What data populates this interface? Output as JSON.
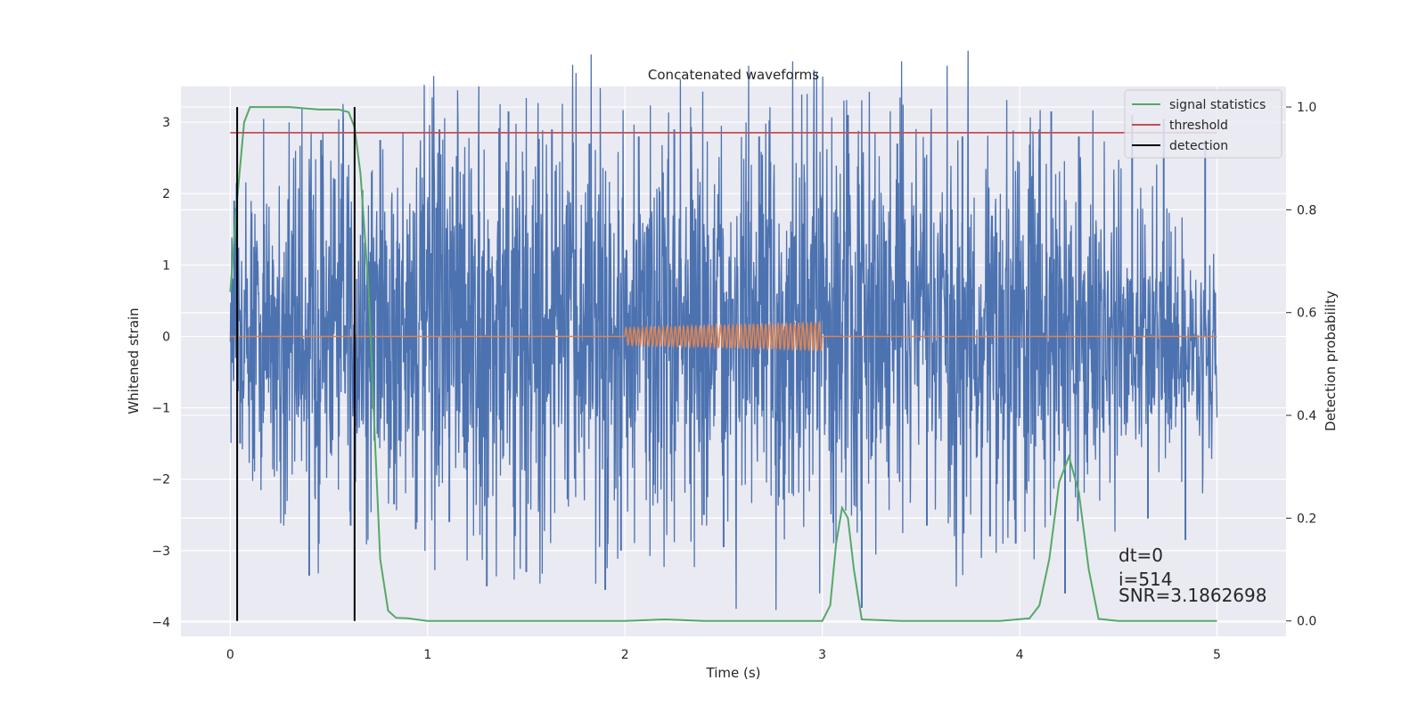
{
  "chart_data": {
    "type": "line",
    "title": "Concatenated waveforms",
    "xlabel": "Time (s)",
    "ylabel": "Whitened strain",
    "y2label": "Detection probability",
    "xlim": [
      -0.25,
      5.35
    ],
    "ylim": [
      -4.2,
      3.5
    ],
    "y2lim": [
      -0.03,
      1.04
    ],
    "xticks": [
      0,
      1,
      2,
      3,
      4,
      5
    ],
    "xtick_labels": [
      "0",
      "1",
      "2",
      "3",
      "4",
      "5"
    ],
    "yticks": [
      3,
      2,
      1,
      0,
      -1,
      -2,
      -3,
      -4
    ],
    "ytick_labels": [
      "3",
      "2",
      "1",
      "0",
      "−1",
      "−2",
      "−3",
      "−4"
    ],
    "y2ticks": [
      1.0,
      0.8,
      0.6,
      0.4,
      0.2,
      0.0
    ],
    "y2tick_labels": [
      "1.0",
      "0.8",
      "0.6",
      "0.4",
      "0.2",
      "0.0"
    ],
    "grid": true,
    "legend_position": "top-right",
    "legend": [
      {
        "label": "signal statistics",
        "color": "#55a868"
      },
      {
        "label": "threshold",
        "color": "#c44e52"
      },
      {
        "label": "detection",
        "color": "#000000"
      }
    ],
    "series": [
      {
        "axis": "left",
        "color": "#4c72b0",
        "x_range": [
          0,
          5
        ],
        "envelope": [
          {
            "x": 0.0,
            "lo": -0.9,
            "hi": 1.3
          },
          {
            "x": 0.1,
            "lo": -1.8,
            "hi": 2.0
          },
          {
            "x": 0.5,
            "lo": -2.3,
            "hi": 2.5
          },
          {
            "x": 1.0,
            "lo": -2.4,
            "hi": 2.6
          },
          {
            "x": 2.0,
            "lo": -2.4,
            "hi": 2.7
          },
          {
            "x": 3.0,
            "lo": -2.5,
            "hi": 2.7
          },
          {
            "x": 4.0,
            "lo": -2.4,
            "hi": 2.7
          },
          {
            "x": 5.0,
            "lo": -1.5,
            "hi": 1.0
          }
        ],
        "spikes": [
          {
            "x": 0.02,
            "y": 1.9
          },
          {
            "x": 0.05,
            "y": -1.5
          },
          {
            "x": 0.4,
            "y": -3.35
          },
          {
            "x": 0.46,
            "y": 2.75
          },
          {
            "x": 0.61,
            "y": -2.65
          },
          {
            "x": 0.67,
            "y": 2.05
          },
          {
            "x": 0.76,
            "y": 2.75
          },
          {
            "x": 0.83,
            "y": -2.35
          },
          {
            "x": 0.94,
            "y": -2.7
          },
          {
            "x": 1.06,
            "y": 2.9
          },
          {
            "x": 1.11,
            "y": -2.6
          },
          {
            "x": 1.3,
            "y": -3.5
          },
          {
            "x": 1.41,
            "y": 3.15
          },
          {
            "x": 1.5,
            "y": -3.3
          },
          {
            "x": 1.63,
            "y": 2.9
          },
          {
            "x": 1.82,
            "y": 2.7
          },
          {
            "x": 1.9,
            "y": -3.55
          },
          {
            "x": 1.98,
            "y": -3.0
          },
          {
            "x": 2.07,
            "y": 2.8
          },
          {
            "x": 2.25,
            "y": 2.9
          },
          {
            "x": 2.4,
            "y": -2.5
          },
          {
            "x": 2.5,
            "y": -2.95
          },
          {
            "x": 2.68,
            "y": 2.8
          },
          {
            "x": 2.78,
            "y": -2.25
          },
          {
            "x": 3.13,
            "y": 3.1
          },
          {
            "x": 3.2,
            "y": -3.8
          },
          {
            "x": 3.38,
            "y": 2.7
          },
          {
            "x": 3.53,
            "y": -2.65
          },
          {
            "x": 3.71,
            "y": 2.8
          },
          {
            "x": 3.85,
            "y": -2.8
          },
          {
            "x": 3.98,
            "y": -2.9
          },
          {
            "x": 4.1,
            "y": 2.9
          },
          {
            "x": 4.16,
            "y": 3.15
          },
          {
            "x": 4.23,
            "y": -3.6
          },
          {
            "x": 4.3,
            "y": 2.8
          },
          {
            "x": 4.57,
            "y": 3.1
          },
          {
            "x": 4.65,
            "y": -2.55
          },
          {
            "x": 4.73,
            "y": 3.05
          },
          {
            "x": 4.84,
            "y": -2.85
          },
          {
            "x": 4.94,
            "y": 2.75
          }
        ]
      },
      {
        "axis": "left",
        "color": "#dd8452",
        "x": [
          0,
          2.0,
          2.0,
          3.0,
          3.0,
          5.0
        ],
        "y": [
          0,
          0,
          0.12,
          0.2,
          0,
          0
        ],
        "oscillation": {
          "x_range": [
            2.0,
            3.0
          ],
          "cycles": 48
        }
      },
      {
        "name": "signal statistics",
        "axis": "right",
        "color": "#55a868",
        "x": [
          0.0,
          0.03,
          0.07,
          0.1,
          0.15,
          0.3,
          0.45,
          0.55,
          0.6,
          0.63,
          0.66,
          0.7,
          0.73,
          0.76,
          0.8,
          0.84,
          0.9,
          1.0,
          2.0,
          2.2,
          2.4,
          3.0,
          3.04,
          3.07,
          3.1,
          3.13,
          3.16,
          3.2,
          3.4,
          3.9,
          4.05,
          4.1,
          4.15,
          4.2,
          4.25,
          4.3,
          4.35,
          4.4,
          4.5,
          5.0
        ],
        "y": [
          0.64,
          0.8,
          0.97,
          1.0,
          1.0,
          1.0,
          0.995,
          0.995,
          0.99,
          0.96,
          0.87,
          0.65,
          0.38,
          0.12,
          0.02,
          0.006,
          0.005,
          0.0,
          0.0,
          0.003,
          0.0,
          0.0,
          0.03,
          0.15,
          0.22,
          0.2,
          0.1,
          0.003,
          0.0,
          0.0,
          0.005,
          0.03,
          0.12,
          0.27,
          0.32,
          0.25,
          0.1,
          0.004,
          0.0,
          0.0
        ]
      },
      {
        "name": "threshold",
        "axis": "right",
        "color": "#c44e52",
        "x": [
          0,
          5
        ],
        "y": [
          0.95,
          0.95
        ]
      },
      {
        "name": "detection",
        "axis": "right",
        "color": "#000000",
        "type": "vlines",
        "x": [
          0.035,
          0.63
        ],
        "y_range": [
          0.0,
          1.0
        ]
      }
    ],
    "annotations": [
      "dt=0",
      "i=514",
      "SNR=3.1862698"
    ]
  }
}
